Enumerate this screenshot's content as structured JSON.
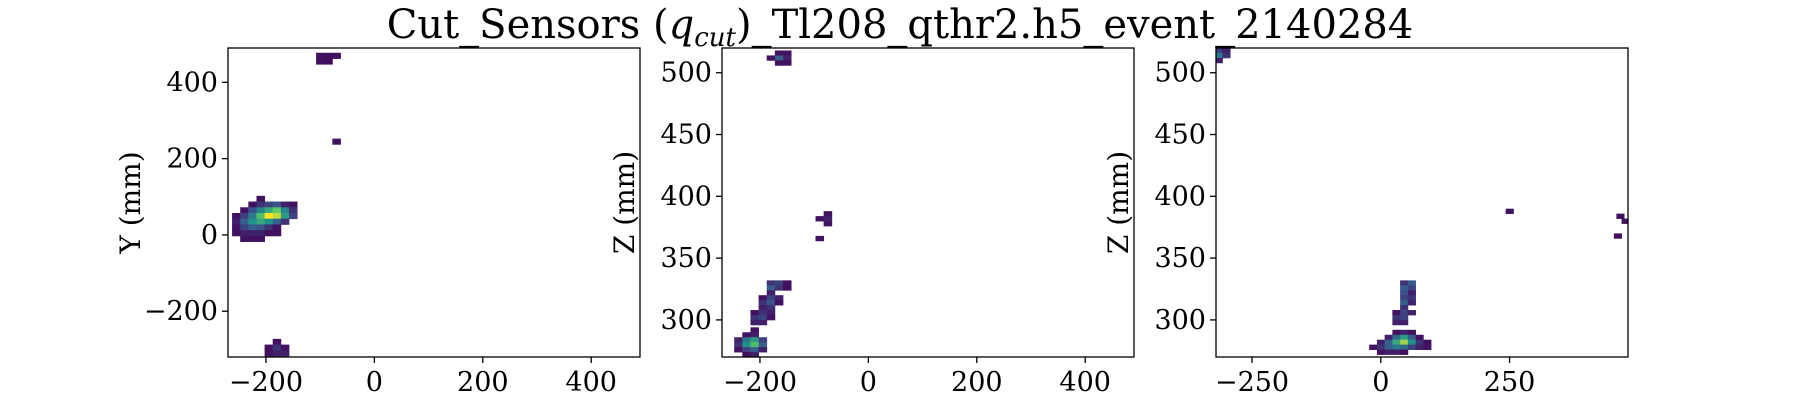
{
  "figure": {
    "title": "Cut_Sensors (q_cut)_Tl208_qthr2.h5_event_2140284",
    "title_prefix": "Cut_Sensors (",
    "title_symbol": "q",
    "title_subscript": "cut",
    "title_suffix": ")_Tl208_qthr2.h5_event_2140284"
  },
  "colormap": {
    "name": "viridis",
    "stops": [
      "#440154",
      "#3b528b",
      "#21918c",
      "#5ec962",
      "#fde725"
    ]
  },
  "chart_data": [
    {
      "type": "heatmap",
      "title": "",
      "xlabel": "",
      "ylabel": "Y (mm)",
      "xlim": [
        -270,
        490
      ],
      "ylim": [
        -320,
        490
      ],
      "xticks": [
        -200,
        0,
        200,
        400
      ],
      "xtick_labels": [
        "−200",
        "0",
        "200",
        "400"
      ],
      "yticks": [
        -200,
        0,
        200,
        400
      ],
      "ytick_labels": [
        "−200",
        "0",
        "200",
        "400"
      ],
      "cell_size": [
        15,
        15
      ],
      "cells": [
        {
          "x": -100,
          "y": 470,
          "v": 0.05
        },
        {
          "x": -85,
          "y": 470,
          "v": 0.05
        },
        {
          "x": -70,
          "y": 470,
          "v": 0.05
        },
        {
          "x": -100,
          "y": 455,
          "v": 0.05
        },
        {
          "x": -85,
          "y": 455,
          "v": 0.03
        },
        {
          "x": -70,
          "y": 245,
          "v": 0.05
        },
        {
          "x": -210,
          "y": 95,
          "v": 0.05
        },
        {
          "x": -225,
          "y": 80,
          "v": 0.05
        },
        {
          "x": -210,
          "y": 80,
          "v": 0.15
        },
        {
          "x": -195,
          "y": 80,
          "v": 0.2
        },
        {
          "x": -180,
          "y": 80,
          "v": 0.25
        },
        {
          "x": -165,
          "y": 80,
          "v": 0.1
        },
        {
          "x": -150,
          "y": 80,
          "v": 0.05
        },
        {
          "x": -240,
          "y": 65,
          "v": 0.05
        },
        {
          "x": -225,
          "y": 65,
          "v": 0.25
        },
        {
          "x": -210,
          "y": 65,
          "v": 0.45
        },
        {
          "x": -195,
          "y": 65,
          "v": 0.6
        },
        {
          "x": -180,
          "y": 65,
          "v": 0.75
        },
        {
          "x": -165,
          "y": 65,
          "v": 0.45
        },
        {
          "x": -150,
          "y": 65,
          "v": 0.15
        },
        {
          "x": -255,
          "y": 50,
          "v": 0.05
        },
        {
          "x": -240,
          "y": 50,
          "v": 0.2
        },
        {
          "x": -225,
          "y": 50,
          "v": 0.4
        },
        {
          "x": -210,
          "y": 50,
          "v": 0.7
        },
        {
          "x": -195,
          "y": 50,
          "v": 1.0
        },
        {
          "x": -180,
          "y": 50,
          "v": 0.9
        },
        {
          "x": -165,
          "y": 50,
          "v": 0.55
        },
        {
          "x": -150,
          "y": 50,
          "v": 0.2
        },
        {
          "x": -255,
          "y": 35,
          "v": 0.1
        },
        {
          "x": -240,
          "y": 35,
          "v": 0.3
        },
        {
          "x": -225,
          "y": 35,
          "v": 0.5
        },
        {
          "x": -210,
          "y": 35,
          "v": 0.6
        },
        {
          "x": -195,
          "y": 35,
          "v": 0.5
        },
        {
          "x": -180,
          "y": 35,
          "v": 0.3
        },
        {
          "x": -165,
          "y": 35,
          "v": 0.15
        },
        {
          "x": -255,
          "y": 20,
          "v": 0.05
        },
        {
          "x": -240,
          "y": 20,
          "v": 0.2
        },
        {
          "x": -225,
          "y": 20,
          "v": 0.3
        },
        {
          "x": -210,
          "y": 20,
          "v": 0.25
        },
        {
          "x": -195,
          "y": 20,
          "v": 0.15
        },
        {
          "x": -180,
          "y": 20,
          "v": 0.05
        },
        {
          "x": -255,
          "y": 5,
          "v": 0.05
        },
        {
          "x": -240,
          "y": 5,
          "v": 0.1
        },
        {
          "x": -225,
          "y": 5,
          "v": 0.1
        },
        {
          "x": -210,
          "y": 5,
          "v": 0.1
        },
        {
          "x": -195,
          "y": 5,
          "v": 0.05
        },
        {
          "x": -180,
          "y": 5,
          "v": 0.05
        },
        {
          "x": -240,
          "y": -10,
          "v": 0.05
        },
        {
          "x": -225,
          "y": -10,
          "v": 0.05
        },
        {
          "x": -210,
          "y": -10,
          "v": 0.05
        },
        {
          "x": -180,
          "y": -280,
          "v": 0.05
        },
        {
          "x": -195,
          "y": -295,
          "v": 0.05
        },
        {
          "x": -180,
          "y": -295,
          "v": 0.15
        },
        {
          "x": -165,
          "y": -295,
          "v": 0.05
        },
        {
          "x": -195,
          "y": -310,
          "v": 0.05
        },
        {
          "x": -180,
          "y": -310,
          "v": 0.1
        },
        {
          "x": -165,
          "y": -310,
          "v": 0.1
        }
      ]
    },
    {
      "type": "heatmap",
      "title": "",
      "xlabel": "",
      "ylabel": "Z (mm)",
      "xlim": [
        -270,
        490
      ],
      "ylim": [
        270,
        520
      ],
      "xticks": [
        -200,
        0,
        200,
        400
      ],
      "xtick_labels": [
        "−200",
        "0",
        "200",
        "400"
      ],
      "yticks": [
        300,
        350,
        400,
        450,
        500
      ],
      "ytick_labels": [
        "300",
        "350",
        "400",
        "450",
        "500"
      ],
      "cell_size": [
        15,
        4
      ],
      "cells": [
        {
          "x": -165,
          "y": 516,
          "v": 0.05
        },
        {
          "x": -150,
          "y": 516,
          "v": 0.05
        },
        {
          "x": -180,
          "y": 512,
          "v": 0.05
        },
        {
          "x": -165,
          "y": 512,
          "v": 0.3
        },
        {
          "x": -150,
          "y": 512,
          "v": 0.1
        },
        {
          "x": -165,
          "y": 508,
          "v": 0.05
        },
        {
          "x": -150,
          "y": 508,
          "v": 0.05
        },
        {
          "x": -75,
          "y": 386,
          "v": 0.05
        },
        {
          "x": -90,
          "y": 382,
          "v": 0.05
        },
        {
          "x": -75,
          "y": 382,
          "v": 0.1
        },
        {
          "x": -75,
          "y": 378,
          "v": 0.05
        },
        {
          "x": -90,
          "y": 366,
          "v": 0.05
        },
        {
          "x": -180,
          "y": 330,
          "v": 0.15
        },
        {
          "x": -165,
          "y": 330,
          "v": 0.2
        },
        {
          "x": -150,
          "y": 330,
          "v": 0.05
        },
        {
          "x": -180,
          "y": 326,
          "v": 0.3
        },
        {
          "x": -165,
          "y": 326,
          "v": 0.15
        },
        {
          "x": -150,
          "y": 326,
          "v": 0.05
        },
        {
          "x": -180,
          "y": 322,
          "v": 0.1
        },
        {
          "x": -195,
          "y": 318,
          "v": 0.05
        },
        {
          "x": -180,
          "y": 318,
          "v": 0.2
        },
        {
          "x": -165,
          "y": 318,
          "v": 0.1
        },
        {
          "x": -195,
          "y": 314,
          "v": 0.15
        },
        {
          "x": -180,
          "y": 314,
          "v": 0.25
        },
        {
          "x": -165,
          "y": 314,
          "v": 0.05
        },
        {
          "x": -195,
          "y": 310,
          "v": 0.1
        },
        {
          "x": -180,
          "y": 310,
          "v": 0.15
        },
        {
          "x": -210,
          "y": 306,
          "v": 0.05
        },
        {
          "x": -195,
          "y": 306,
          "v": 0.15
        },
        {
          "x": -180,
          "y": 306,
          "v": 0.1
        },
        {
          "x": -210,
          "y": 302,
          "v": 0.15
        },
        {
          "x": -195,
          "y": 302,
          "v": 0.2
        },
        {
          "x": -180,
          "y": 302,
          "v": 0.05
        },
        {
          "x": -210,
          "y": 298,
          "v": 0.1
        },
        {
          "x": -195,
          "y": 298,
          "v": 0.1
        },
        {
          "x": -210,
          "y": 292,
          "v": 0.05
        },
        {
          "x": -225,
          "y": 288,
          "v": 0.05
        },
        {
          "x": -210,
          "y": 288,
          "v": 0.1
        },
        {
          "x": -240,
          "y": 284,
          "v": 0.1
        },
        {
          "x": -225,
          "y": 284,
          "v": 0.4
        },
        {
          "x": -210,
          "y": 284,
          "v": 0.55
        },
        {
          "x": -195,
          "y": 284,
          "v": 0.2
        },
        {
          "x": -240,
          "y": 280,
          "v": 0.15
        },
        {
          "x": -225,
          "y": 280,
          "v": 0.5
        },
        {
          "x": -210,
          "y": 280,
          "v": 0.7
        },
        {
          "x": -195,
          "y": 280,
          "v": 0.3
        },
        {
          "x": -240,
          "y": 276,
          "v": 0.05
        },
        {
          "x": -225,
          "y": 276,
          "v": 0.2
        },
        {
          "x": -210,
          "y": 276,
          "v": 0.3
        },
        {
          "x": -195,
          "y": 276,
          "v": 0.1
        },
        {
          "x": -225,
          "y": 272,
          "v": 0.05
        },
        {
          "x": -210,
          "y": 272,
          "v": 0.1
        }
      ]
    },
    {
      "type": "heatmap",
      "title": "",
      "xlabel": "",
      "ylabel": "Z (mm)",
      "xlim": [
        -320,
        480
      ],
      "ylim": [
        270,
        520
      ],
      "xticks": [
        -250,
        0,
        250
      ],
      "xtick_labels": [
        "−250",
        "0",
        "250"
      ],
      "yticks": [
        300,
        350,
        400,
        450,
        500
      ],
      "ytick_labels": [
        "300",
        "350",
        "400",
        "450",
        "500"
      ],
      "cell_size": [
        15,
        4
      ],
      "cells": [
        {
          "x": -315,
          "y": 518,
          "v": 0.2
        },
        {
          "x": -300,
          "y": 518,
          "v": 0.1
        },
        {
          "x": -315,
          "y": 514,
          "v": 0.4
        },
        {
          "x": -300,
          "y": 514,
          "v": 0.15
        },
        {
          "x": -315,
          "y": 510,
          "v": 0.1
        },
        {
          "x": 250,
          "y": 388,
          "v": 0.05
        },
        {
          "x": 465,
          "y": 384,
          "v": 0.05
        },
        {
          "x": 475,
          "y": 380,
          "v": 0.05
        },
        {
          "x": 460,
          "y": 368,
          "v": 0.05
        },
        {
          "x": 45,
          "y": 330,
          "v": 0.15
        },
        {
          "x": 60,
          "y": 330,
          "v": 0.3
        },
        {
          "x": 45,
          "y": 326,
          "v": 0.3
        },
        {
          "x": 60,
          "y": 326,
          "v": 0.2
        },
        {
          "x": 45,
          "y": 322,
          "v": 0.25
        },
        {
          "x": 60,
          "y": 322,
          "v": 0.1
        },
        {
          "x": 45,
          "y": 318,
          "v": 0.2
        },
        {
          "x": 60,
          "y": 318,
          "v": 0.15
        },
        {
          "x": 45,
          "y": 314,
          "v": 0.3
        },
        {
          "x": 60,
          "y": 314,
          "v": 0.1
        },
        {
          "x": 45,
          "y": 310,
          "v": 0.15
        },
        {
          "x": 30,
          "y": 306,
          "v": 0.05
        },
        {
          "x": 45,
          "y": 306,
          "v": 0.2
        },
        {
          "x": 60,
          "y": 306,
          "v": 0.1
        },
        {
          "x": 30,
          "y": 302,
          "v": 0.15
        },
        {
          "x": 45,
          "y": 302,
          "v": 0.2
        },
        {
          "x": 30,
          "y": 298,
          "v": 0.1
        },
        {
          "x": 45,
          "y": 298,
          "v": 0.1
        },
        {
          "x": 30,
          "y": 290,
          "v": 0.05
        },
        {
          "x": 45,
          "y": 290,
          "v": 0.1
        },
        {
          "x": 60,
          "y": 290,
          "v": 0.05
        },
        {
          "x": 15,
          "y": 286,
          "v": 0.1
        },
        {
          "x": 30,
          "y": 286,
          "v": 0.35
        },
        {
          "x": 45,
          "y": 286,
          "v": 0.55
        },
        {
          "x": 60,
          "y": 286,
          "v": 0.3
        },
        {
          "x": 75,
          "y": 286,
          "v": 0.05
        },
        {
          "x": 0,
          "y": 282,
          "v": 0.1
        },
        {
          "x": 15,
          "y": 282,
          "v": 0.3
        },
        {
          "x": 30,
          "y": 282,
          "v": 0.6
        },
        {
          "x": 45,
          "y": 282,
          "v": 0.85
        },
        {
          "x": 60,
          "y": 282,
          "v": 0.5
        },
        {
          "x": 75,
          "y": 282,
          "v": 0.15
        },
        {
          "x": 90,
          "y": 282,
          "v": 0.05
        },
        {
          "x": -15,
          "y": 278,
          "v": 0.05
        },
        {
          "x": 0,
          "y": 278,
          "v": 0.15
        },
        {
          "x": 15,
          "y": 278,
          "v": 0.3
        },
        {
          "x": 30,
          "y": 278,
          "v": 0.4
        },
        {
          "x": 45,
          "y": 278,
          "v": 0.35
        },
        {
          "x": 60,
          "y": 278,
          "v": 0.2
        },
        {
          "x": 75,
          "y": 278,
          "v": 0.1
        },
        {
          "x": 90,
          "y": 278,
          "v": 0.05
        },
        {
          "x": 0,
          "y": 274,
          "v": 0.05
        },
        {
          "x": 15,
          "y": 274,
          "v": 0.1
        },
        {
          "x": 30,
          "y": 274,
          "v": 0.1
        },
        {
          "x": 45,
          "y": 274,
          "v": 0.05
        }
      ]
    }
  ]
}
